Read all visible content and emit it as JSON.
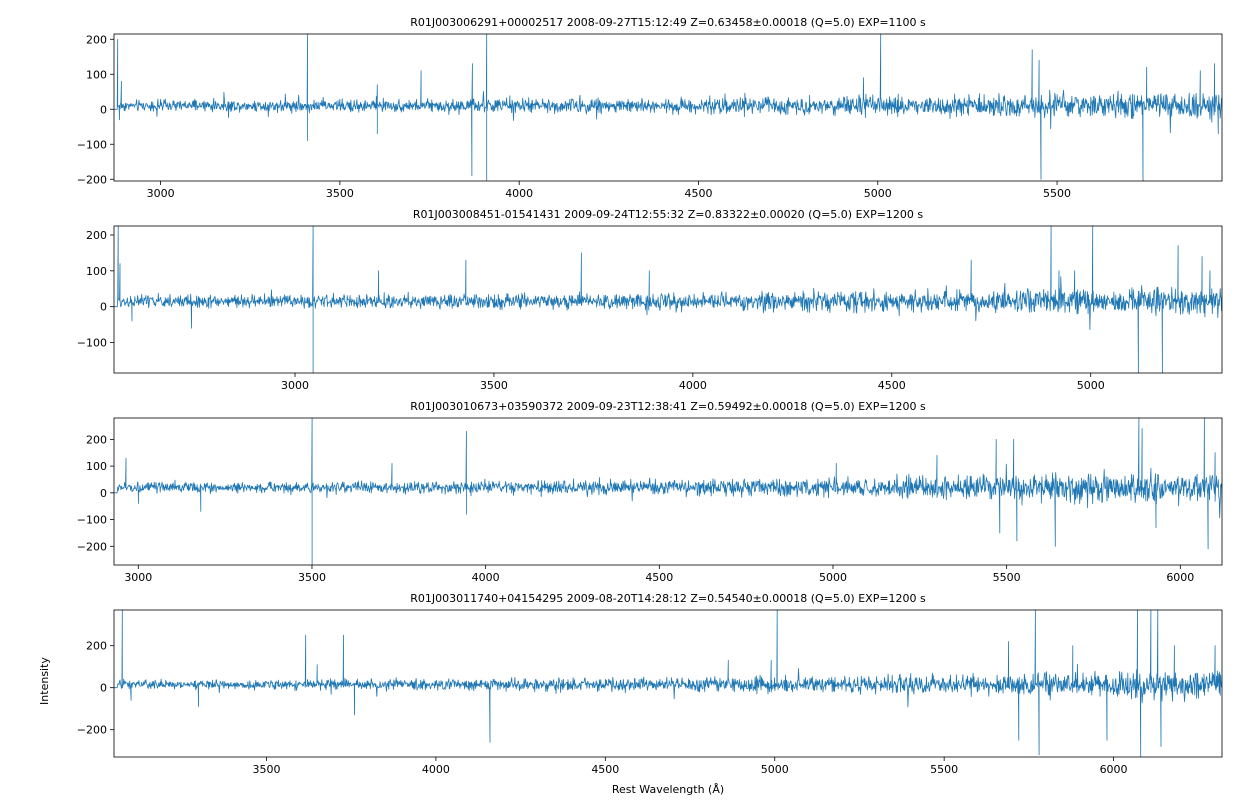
{
  "figure": {
    "ylabel": "Intensity",
    "xlabel": "Rest Wavelength (Å)"
  },
  "chart_data": [
    {
      "type": "line",
      "title": "R01J003006291+00002517 2008-09-27T15:12:49 Z=0.63458±0.00018 (Q=5.0) EXP=1100 s",
      "xlim": [
        2870,
        5960
      ],
      "ylim": [
        -205,
        215
      ],
      "xticks": [
        3000,
        3500,
        4000,
        4500,
        5000,
        5500
      ],
      "yticks": [
        -200,
        -100,
        0,
        100,
        200
      ],
      "color": "#1f77b4",
      "baseline": 10,
      "noise": 12,
      "noise_growth": 18,
      "spikes": [
        [
          2880,
          200
        ],
        [
          2886,
          -30
        ],
        [
          2890,
          80
        ],
        [
          3410,
          215
        ],
        [
          3410,
          -90
        ],
        [
          3604,
          70
        ],
        [
          3604,
          -70
        ],
        [
          3727,
          110
        ],
        [
          3868,
          -190
        ],
        [
          3870,
          130
        ],
        [
          3910,
          215
        ],
        [
          3910,
          -205
        ],
        [
          4960,
          90
        ],
        [
          5008,
          215
        ],
        [
          5430,
          170
        ],
        [
          5450,
          140
        ],
        [
          5455,
          -200
        ],
        [
          5740,
          -205
        ],
        [
          5750,
          120
        ],
        [
          5900,
          110
        ],
        [
          5940,
          130
        ],
        [
          5950,
          -70
        ]
      ]
    },
    {
      "type": "line",
      "title": "R01J003008451-01541431 2009-09-24T12:55:32 Z=0.83322±0.00020 (Q=5.0) EXP=1200 s",
      "xlim": [
        2545,
        5330
      ],
      "ylim": [
        -185,
        225
      ],
      "xticks": [
        3000,
        3500,
        4000,
        4500,
        5000
      ],
      "yticks": [
        -100,
        0,
        100,
        200
      ],
      "color": "#1f77b4",
      "baseline": 15,
      "noise": 13,
      "noise_growth": 16,
      "spikes": [
        [
          2555,
          225
        ],
        [
          2560,
          120
        ],
        [
          2590,
          -40
        ],
        [
          2740,
          -60
        ],
        [
          3045,
          225
        ],
        [
          3045,
          -185
        ],
        [
          3210,
          100
        ],
        [
          3430,
          130
        ],
        [
          3720,
          150
        ],
        [
          3890,
          100
        ],
        [
          4700,
          130
        ],
        [
          4900,
          225
        ],
        [
          4920,
          100
        ],
        [
          4960,
          100
        ],
        [
          5005,
          225
        ],
        [
          5120,
          -185
        ],
        [
          5180,
          -185
        ],
        [
          5220,
          170
        ],
        [
          5280,
          140
        ],
        [
          5300,
          100
        ]
      ]
    },
    {
      "type": "line",
      "title": "R01J003010673+03590372 2009-09-23T12:38:41 Z=0.59492±0.00018 (Q=5.0) EXP=1200 s",
      "xlim": [
        2930,
        6120
      ],
      "ylim": [
        -270,
        280
      ],
      "xticks": [
        3000,
        3500,
        4000,
        4500,
        5000,
        5500,
        6000
      ],
      "yticks": [
        -200,
        -100,
        0,
        100,
        200
      ],
      "color": "#1f77b4",
      "baseline": 20,
      "noise": 14,
      "noise_growth": 30,
      "spikes": [
        [
          2965,
          130
        ],
        [
          3000,
          -40
        ],
        [
          3180,
          -70
        ],
        [
          3500,
          280
        ],
        [
          3500,
          -270
        ],
        [
          3730,
          110
        ],
        [
          3945,
          230
        ],
        [
          3945,
          -80
        ],
        [
          5010,
          110
        ],
        [
          5300,
          140
        ],
        [
          5470,
          200
        ],
        [
          5480,
          -150
        ],
        [
          5520,
          200
        ],
        [
          5530,
          -180
        ],
        [
          5640,
          -200
        ],
        [
          5880,
          280
        ],
        [
          5890,
          240
        ],
        [
          5930,
          -130
        ],
        [
          6070,
          280
        ],
        [
          6080,
          -210
        ],
        [
          6100,
          150
        ]
      ]
    },
    {
      "type": "line",
      "title": "R01J003011740+04154295 2009-08-20T14:28:12 Z=0.54540±0.00018 (Q=5.0) EXP=1200 s",
      "xlim": [
        3050,
        6320
      ],
      "ylim": [
        -330,
        370
      ],
      "xticks": [
        3500,
        4000,
        4500,
        5000,
        5500,
        6000
      ],
      "yticks": [
        -200,
        0,
        200
      ],
      "color": "#1f77b4",
      "baseline": 15,
      "noise": 16,
      "noise_growth": 35,
      "spikes": [
        [
          3075,
          370
        ],
        [
          3100,
          -60
        ],
        [
          3300,
          -90
        ],
        [
          3615,
          250
        ],
        [
          3650,
          110
        ],
        [
          3727,
          250
        ],
        [
          3760,
          -130
        ],
        [
          4160,
          -260
        ],
        [
          4863,
          130
        ],
        [
          4990,
          130
        ],
        [
          5007,
          370
        ],
        [
          5690,
          220
        ],
        [
          5720,
          -250
        ],
        [
          5770,
          370
        ],
        [
          5780,
          -320
        ],
        [
          5880,
          200
        ],
        [
          5980,
          -250
        ],
        [
          6070,
          370
        ],
        [
          6080,
          -330
        ],
        [
          6110,
          370
        ],
        [
          6130,
          370
        ],
        [
          6140,
          -280
        ],
        [
          6180,
          200
        ],
        [
          6300,
          200
        ]
      ]
    }
  ]
}
